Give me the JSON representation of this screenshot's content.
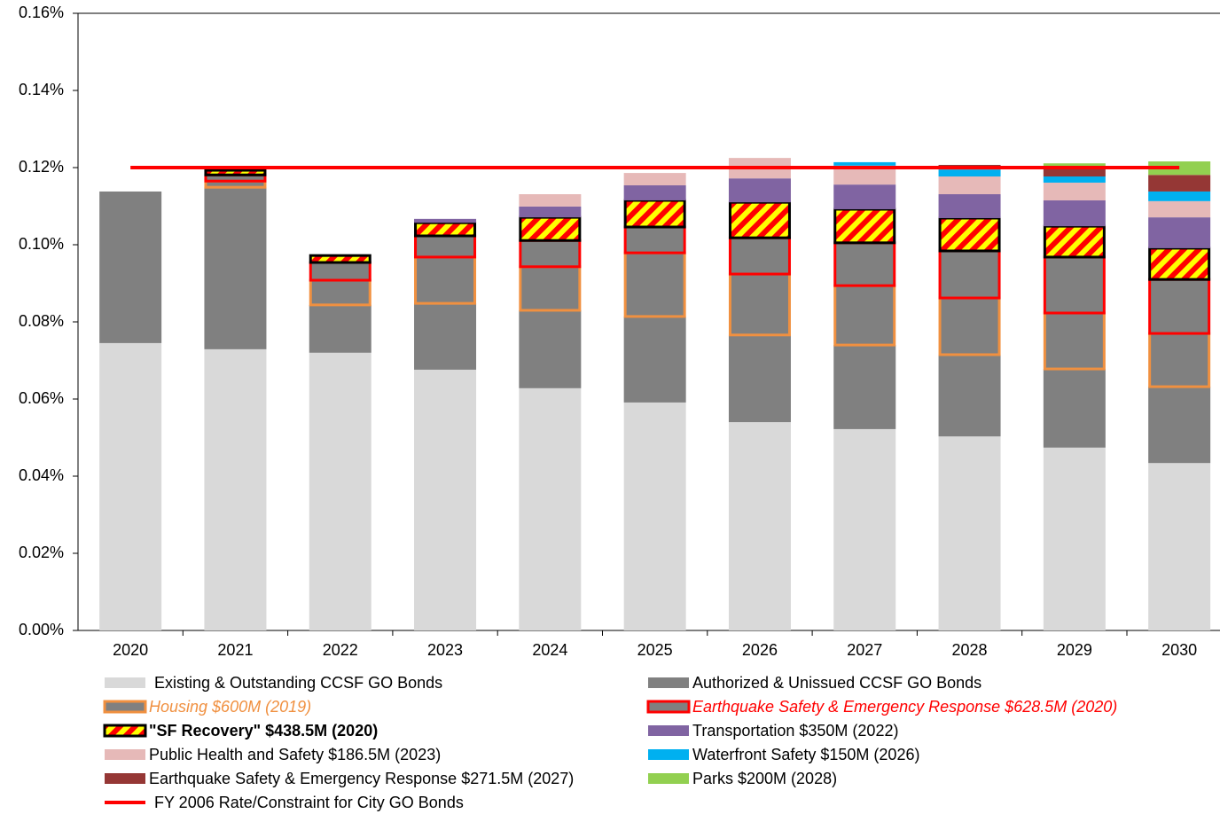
{
  "chart_data": {
    "type": "stacked_bar",
    "categories": [
      "2020",
      "2021",
      "2022",
      "2023",
      "2024",
      "2025",
      "2026",
      "2027",
      "2028",
      "2029",
      "2030"
    ],
    "ylim": [
      0,
      0.16
    ],
    "yticks": [
      {
        "value": 0,
        "label": "0.00%"
      },
      {
        "value": 0.02,
        "label": "0.02%"
      },
      {
        "value": 0.04,
        "label": "0.04%"
      },
      {
        "value": 0.06,
        "label": "0.06%"
      },
      {
        "value": 0.08,
        "label": "0.08%"
      },
      {
        "value": 0.1,
        "label": "0.10%"
      },
      {
        "value": 0.12,
        "label": "0.12%"
      },
      {
        "value": 0.14,
        "label": "0.14%"
      },
      {
        "value": 0.16,
        "label": "0.16%"
      }
    ],
    "series": [
      {
        "name": "Existing & Outstanding CCSF GO Bonds",
        "color": "#d9d9d9",
        "values": [
          0.0745,
          0.0729,
          0.072,
          0.0676,
          0.0628,
          0.0591,
          0.054,
          0.0522,
          0.0503,
          0.0474,
          0.0434
        ]
      },
      {
        "name": "Authorized & Unissued CCSF GO Bonds",
        "color": "#808080",
        "values": [
          0.0393,
          0.042,
          0.0124,
          0.0172,
          0.0202,
          0.0223,
          0.0226,
          0.0218,
          0.0212,
          0.0204,
          0.0198
        ]
      },
      {
        "name": "Housing $600M (2019)",
        "color": "#808080",
        "edgecolor": "#f09040",
        "values": [
          0,
          0.0016,
          0.0064,
          0.012,
          0.0113,
          0.0165,
          0.0158,
          0.0154,
          0.0147,
          0.0145,
          0.0138
        ]
      },
      {
        "name": "Earthquake Safety & Emergency Response $628.5M (2020)",
        "color": "#808080",
        "edgecolor": "#ff0000",
        "values": [
          0,
          0.0016,
          0.0046,
          0.0055,
          0.0068,
          0.0067,
          0.0094,
          0.0111,
          0.0122,
          0.0145,
          0.014
        ]
      },
      {
        "name": "\"SF Recovery\" $438.5M (2020)",
        "color": "#ffff00",
        "hatch_color": "#ff0000",
        "edgecolor": "#000000",
        "values": [
          0,
          0.0012,
          0.0018,
          0.0034,
          0.006,
          0.0069,
          0.0092,
          0.0087,
          0.0085,
          0.008,
          0.0081
        ]
      },
      {
        "name": "Transportation $350M (2022)",
        "color": "#8064a2",
        "values": [
          0,
          0,
          0,
          0.001,
          0.0028,
          0.0039,
          0.0062,
          0.0064,
          0.0062,
          0.0067,
          0.008
        ]
      },
      {
        "name": "Public Health and Safety $186.5M (2023)",
        "color": "#e6b9b8",
        "values": [
          0,
          0,
          0,
          0,
          0.0032,
          0.0032,
          0.0053,
          0.0049,
          0.0046,
          0.0046,
          0.0042
        ]
      },
      {
        "name": "Waterfront Safety $150M (2026)",
        "color": "#00b0f0",
        "values": [
          0,
          0,
          0,
          0,
          0,
          0,
          0,
          0.0009,
          0.0018,
          0.0016,
          0.0025
        ]
      },
      {
        "name": "Earthquake Safety & Emergency Response $271.5M (2027)",
        "color": "#953735",
        "values": [
          0,
          0,
          0,
          0,
          0,
          0,
          0,
          0,
          0.0012,
          0.0025,
          0.0043
        ]
      },
      {
        "name": "Parks $200M (2028)",
        "color": "#92d050",
        "values": [
          0,
          0,
          0,
          0,
          0,
          0,
          0,
          0,
          0,
          0.0009,
          0.0035
        ]
      }
    ],
    "reference_line": {
      "name": "FY 2006 Rate/Constraint for City GO Bonds",
      "value": 0.12,
      "color": "#ff0000"
    }
  }
}
